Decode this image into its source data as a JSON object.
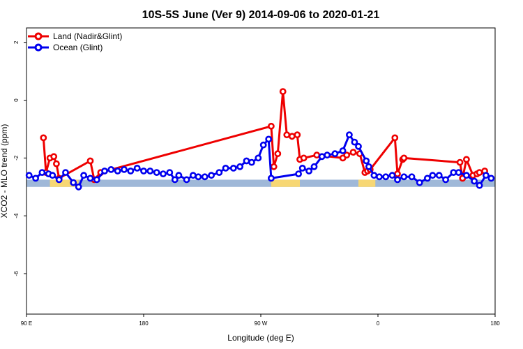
{
  "chart_data": {
    "type": "line",
    "title": "10S-5S June (Ver 9)   2014-09-06 to 2020-01-21",
    "xlabel": "Longitude (deg E)",
    "ylabel": "XCO2 - MLO trend (ppm)",
    "xlim": [
      90,
      450
    ],
    "ylim": [
      -7.4,
      2.5
    ],
    "x_ticks": [
      {
        "value": 90,
        "label": "90 E"
      },
      {
        "value": 180,
        "label": "180"
      },
      {
        "value": 270,
        "label": "90 W"
      },
      {
        "value": 360,
        "label": "0"
      },
      {
        "value": 450,
        "label": "180"
      }
    ],
    "y_ticks": [
      {
        "value": 2,
        "label": "2"
      },
      {
        "value": 0,
        "label": "0"
      },
      {
        "value": -2,
        "label": "-2"
      },
      {
        "value": -4,
        "label": "-4"
      },
      {
        "value": -6,
        "label": "-6"
      }
    ],
    "legend_position": "top-left",
    "grid": false,
    "series": [
      {
        "name": "Land (Nadir&Glint)",
        "color": "#ee0000",
        "x": [
          103,
          105,
          108,
          111,
          113,
          115,
          139,
          142,
          147,
          278,
          280,
          283,
          287,
          290,
          294,
          298,
          300,
          303,
          313,
          333,
          336,
          341,
          346,
          350,
          352,
          354,
          373,
          375,
          379,
          380,
          423,
          425,
          428,
          433,
          436,
          438,
          442
        ],
        "y": [
          -1.3,
          -2.5,
          -2.0,
          -1.95,
          -2.2,
          -2.7,
          -2.1,
          -2.75,
          -2.5,
          -0.9,
          -2.3,
          -1.85,
          0.3,
          -1.2,
          -1.25,
          -1.2,
          -2.05,
          -2.0,
          -1.9,
          -2.0,
          -1.9,
          -1.8,
          -1.85,
          -2.5,
          -2.45,
          -2.4,
          -1.3,
          -2.55,
          -2.05,
          -2.0,
          -2.15,
          -2.7,
          -2.05,
          -2.6,
          -2.55,
          -2.5,
          -2.45
        ]
      },
      {
        "name": "Ocean (Glint)",
        "color": "#0000ee",
        "x": [
          92,
          97,
          102,
          107,
          110,
          115,
          120,
          126,
          130,
          134,
          139,
          144,
          150,
          155,
          160,
          165,
          170,
          175,
          180,
          185,
          190,
          195,
          200,
          204,
          207,
          213,
          218,
          222,
          227,
          232,
          238,
          243,
          249,
          254,
          259,
          263,
          268,
          272,
          276,
          278,
          299,
          302,
          307,
          311,
          317,
          321,
          327,
          333,
          338,
          342,
          345,
          351,
          353,
          357,
          361,
          366,
          371,
          375,
          380,
          386,
          392,
          398,
          402,
          407,
          412,
          418,
          422,
          428,
          434,
          438,
          443,
          447
        ],
        "y": [
          -2.6,
          -2.7,
          -2.5,
          -2.55,
          -2.6,
          -2.75,
          -2.5,
          -2.85,
          -3.0,
          -2.6,
          -2.7,
          -2.75,
          -2.45,
          -2.4,
          -2.45,
          -2.4,
          -2.45,
          -2.35,
          -2.45,
          -2.45,
          -2.5,
          -2.55,
          -2.5,
          -2.75,
          -2.6,
          -2.75,
          -2.6,
          -2.65,
          -2.65,
          -2.6,
          -2.5,
          -2.35,
          -2.35,
          -2.3,
          -2.1,
          -2.15,
          -2.0,
          -1.55,
          -1.35,
          -2.7,
          -2.55,
          -2.35,
          -2.45,
          -2.3,
          -1.95,
          -1.9,
          -1.85,
          -1.75,
          -1.2,
          -1.45,
          -1.6,
          -2.1,
          -2.3,
          -2.6,
          -2.65,
          -2.65,
          -2.6,
          -2.75,
          -2.65,
          -2.65,
          -2.85,
          -2.7,
          -2.6,
          -2.6,
          -2.75,
          -2.5,
          -2.5,
          -2.6,
          -2.8,
          -2.95,
          -2.6,
          -2.7
        ]
      }
    ]
  }
}
